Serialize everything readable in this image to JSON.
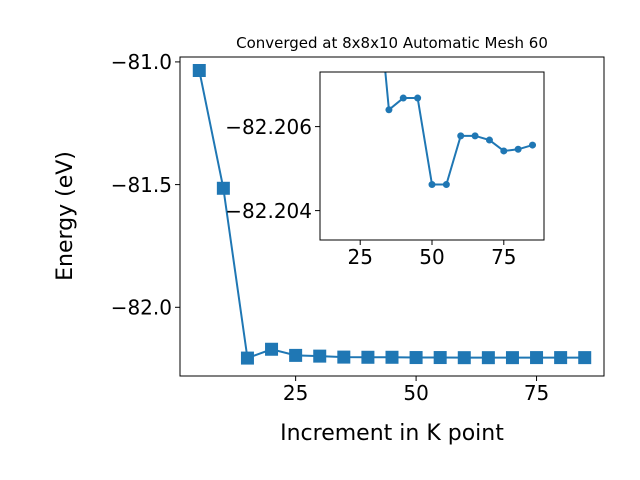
{
  "chart_data": [
    {
      "type": "line",
      "title": "Converged at 8x8x10 Automatic Mesh 60",
      "xlabel": "Increment in K point",
      "ylabel": "Energy (eV)",
      "xlim": [
        1.0,
        89.0
      ],
      "ylim": [
        -82.28,
        -80.98
      ],
      "xticks": [
        25,
        50,
        75
      ],
      "xtick_labels": [
        "25",
        "50",
        "75"
      ],
      "yticks": [
        -81.0,
        -81.5,
        -82.0
      ],
      "ytick_labels": [
        "−81.0",
        "−81.5",
        "−82.0"
      ],
      "grid": false,
      "marker": "square",
      "color": "#1f77b4",
      "series": [
        {
          "x": [
            5,
            10,
            15,
            20,
            25,
            30,
            35,
            40,
            45,
            50,
            55,
            60,
            65,
            70,
            75,
            80,
            85
          ],
          "y": [
            -81.035,
            -81.515,
            -82.207,
            -82.171,
            -82.196,
            -82.199,
            -82.203,
            -82.2037,
            -82.2037,
            -82.2048,
            -82.2048,
            -82.2053,
            -82.2053,
            -82.2052,
            -82.205,
            -82.205,
            -82.2051
          ]
        }
      ]
    },
    {
      "type": "line",
      "title": "",
      "xlabel": "",
      "ylabel": "",
      "xlim": [
        11.0,
        89.0
      ],
      "ylim": [
        -82.2033,
        -82.2073
      ],
      "xticks": [
        25,
        50,
        75
      ],
      "xtick_labels": [
        "25",
        "50",
        "75"
      ],
      "yticks": [
        -82.206,
        -82.204
      ],
      "ytick_labels": [
        "−82.206",
        "−82.204"
      ],
      "grid": false,
      "marker": "circle",
      "color": "#1f77b4",
      "series": [
        {
          "x": [
            30,
            35,
            40,
            45,
            50,
            55,
            60,
            65,
            70,
            75,
            80,
            85
          ],
          "y": [
            -82.21,
            -82.2064,
            -82.20668,
            -82.20668,
            -82.20462,
            -82.20462,
            -82.20578,
            -82.20578,
            -82.20568,
            -82.20542,
            -82.20546,
            -82.20556
          ]
        }
      ]
    }
  ]
}
